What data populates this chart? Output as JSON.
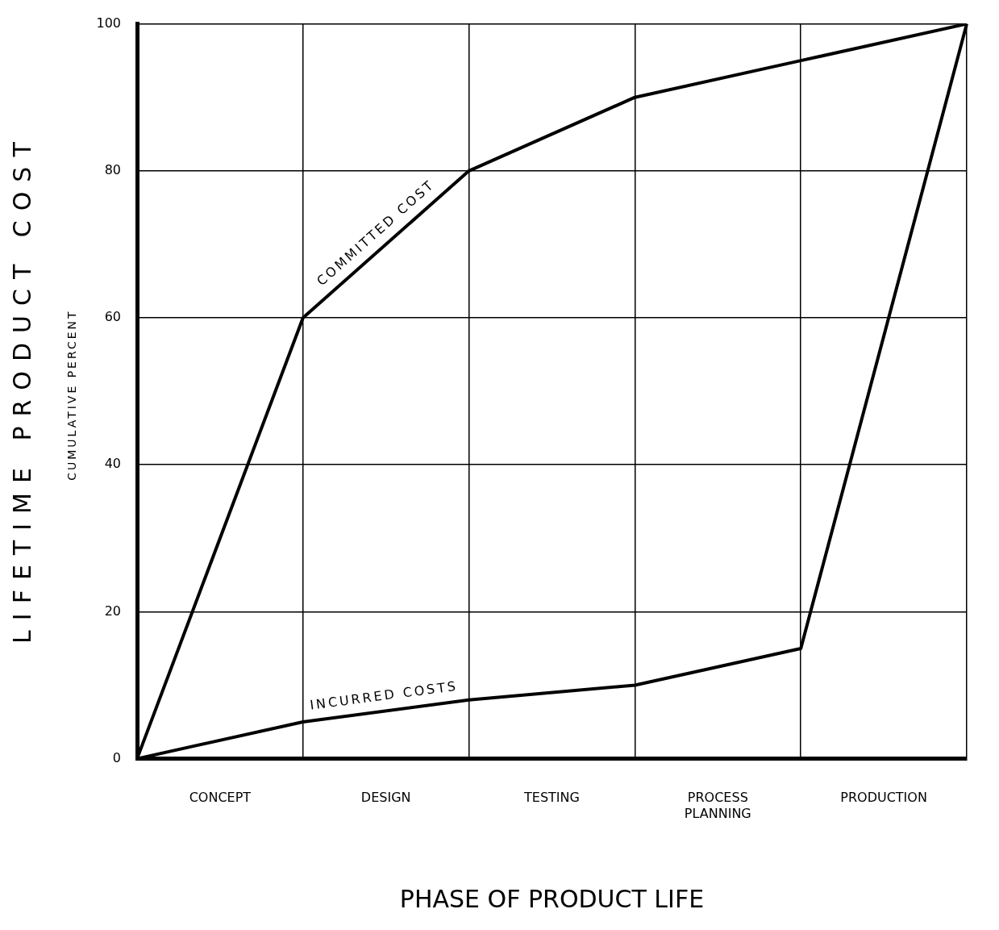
{
  "chart_data": {
    "type": "line",
    "xlabel": "PHASE OF PRODUCT LIFE",
    "ylabel": "LIFETIME PRODUCT COST",
    "annotations": [
      "CUMULATIVE PERCENT"
    ],
    "categories": [
      null,
      "CONCEPT",
      null,
      "DESIGN",
      null,
      "TESTING",
      null,
      "PROCESS PLANNING",
      null,
      "PRODUCTION",
      null
    ],
    "ylim": [
      0,
      100
    ],
    "yticks": [
      0,
      20,
      40,
      60,
      80,
      100
    ],
    "series": [
      {
        "name": "COMMITTED COST",
        "color": "#000000",
        "values": [
          0,
          null,
          60,
          null,
          80,
          null,
          90,
          null,
          95,
          null,
          100
        ]
      },
      {
        "name": "INCURRED COSTS",
        "color": "#000000",
        "values": [
          0,
          null,
          5,
          null,
          8,
          null,
          10,
          null,
          15,
          null,
          100
        ]
      }
    ],
    "grid": true,
    "legend": false,
    "marker": "none",
    "line_style": "solid"
  }
}
